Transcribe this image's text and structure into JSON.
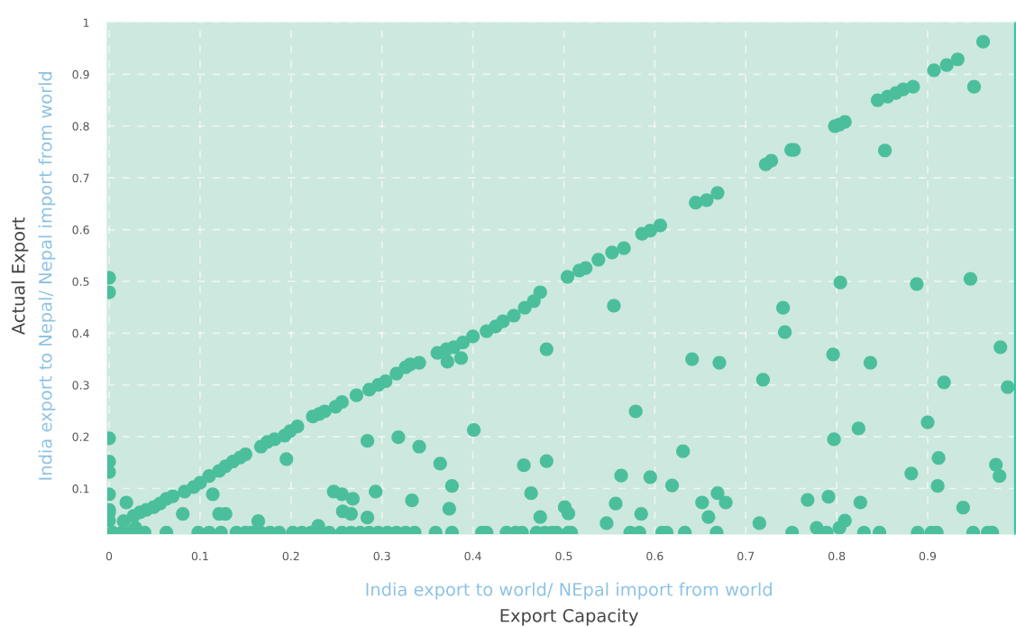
{
  "chart_data": {
    "type": "scatter",
    "xlabel": "Export Capacity",
    "ylabel": "Actual Export",
    "annotations": [
      "India export to world/ NEpal import from world",
      "India export to Nepal/ Nepal import from world"
    ],
    "x": [
      0,
      0,
      0,
      0,
      0,
      0,
      0,
      0,
      0,
      0.016,
      0.027,
      0.034,
      0.041,
      0.049,
      0.056,
      0.063,
      0.07,
      0.083,
      0.093,
      0.1,
      0.11,
      0.121,
      0.128,
      0.136,
      0.144,
      0.15,
      0.167,
      0.174,
      0.182,
      0.193,
      0.199,
      0.207,
      0.224,
      0.231,
      0.237,
      0.249,
      0.256,
      0.272,
      0.286,
      0.296,
      0.304,
      0.316,
      0.326,
      0.331,
      0.341,
      0.361,
      0.371,
      0.379,
      0.389,
      0.4,
      0.415,
      0.425,
      0.433,
      0.445,
      0.457,
      0.467,
      0.474,
      0.504,
      0.517,
      0.524,
      0.538,
      0.553,
      0.566,
      0.586,
      0.595,
      0.606,
      0.645,
      0.657,
      0.669,
      0.722,
      0.728,
      0.75,
      0.753,
      0.798,
      0.803,
      0.809,
      0.845,
      0.856,
      0.865,
      0.873,
      0.884,
      0.907,
      0.921,
      0.933,
      0.961,
      0.951,
      0.853,
      0.019,
      0.114,
      0.081,
      0.121,
      0.128,
      0.195,
      0.284,
      0.318,
      0.247,
      0.256,
      0.268,
      0.293,
      0.257,
      0.266,
      0.284,
      0.333,
      0.164,
      0.23,
      0.555,
      0.481,
      0.372,
      0.387,
      0.341,
      0.401,
      0.364,
      0.377,
      0.374,
      0.456,
      0.481,
      0.464,
      0.474,
      0.501,
      0.505,
      0.547,
      0.557,
      0.563,
      0.585,
      0.595,
      0.619,
      0.631,
      0.579,
      0.641,
      0.671,
      0.652,
      0.659,
      0.669,
      0.678,
      0.804,
      0.888,
      0.947,
      0.741,
      0.743,
      0.719,
      0.796,
      0.837,
      0.98,
      0.918,
      0.988,
      0.9,
      0.824,
      0.797,
      0.912,
      0.882,
      0.975,
      0.979,
      0.911,
      0.768,
      0.791,
      0.826,
      0.939,
      0.715,
      0.809,
      0.778,
      0.803,
      0.029,
      0.004,
      0.014,
      0.024,
      0.039,
      0.063,
      0.098,
      0.11,
      0.123,
      0.14,
      0.15,
      0.157,
      0.167,
      0.177,
      0.187,
      0.202,
      0.212,
      0.222,
      0.232,
      0.242,
      0.256,
      0.266,
      0.276,
      0.286,
      0.296,
      0.306,
      0.316,
      0.326,
      0.336,
      0.359,
      0.377,
      0.41,
      0.415,
      0.437,
      0.447,
      0.454,
      0.47,
      0.479,
      0.487,
      0.492,
      0.505,
      0.508,
      0.573,
      0.583,
      0.608,
      0.613,
      0.633,
      0.668,
      0.751,
      0.789,
      0.83,
      0.847,
      0.889,
      0.904,
      0.91,
      0.95,
      0.966,
      0.971
    ],
    "values": [
      0.507,
      0.479,
      0.197,
      0.152,
      0.132,
      0.089,
      0.059,
      0.054,
      0.038,
      0.037,
      0.047,
      0.054,
      0.059,
      0.064,
      0.071,
      0.08,
      0.085,
      0.094,
      0.103,
      0.111,
      0.124,
      0.134,
      0.143,
      0.152,
      0.16,
      0.166,
      0.181,
      0.19,
      0.195,
      0.202,
      0.211,
      0.22,
      0.239,
      0.244,
      0.249,
      0.258,
      0.267,
      0.28,
      0.291,
      0.3,
      0.307,
      0.322,
      0.334,
      0.34,
      0.343,
      0.362,
      0.369,
      0.373,
      0.382,
      0.394,
      0.404,
      0.413,
      0.423,
      0.434,
      0.449,
      0.462,
      0.479,
      0.509,
      0.521,
      0.526,
      0.542,
      0.556,
      0.564,
      0.592,
      0.598,
      0.608,
      0.652,
      0.657,
      0.671,
      0.726,
      0.733,
      0.754,
      0.754,
      0.8,
      0.803,
      0.808,
      0.85,
      0.857,
      0.864,
      0.871,
      0.876,
      0.908,
      0.918,
      0.929,
      0.963,
      0.876,
      0.753,
      0.073,
      0.089,
      0.051,
      0.051,
      0.051,
      0.157,
      0.192,
      0.199,
      0.094,
      0.089,
      0.08,
      0.094,
      0.056,
      0.051,
      0.044,
      0.077,
      0.037,
      0.028,
      0.453,
      0.369,
      0.345,
      0.352,
      0.181,
      0.213,
      0.148,
      0.105,
      0.061,
      0.145,
      0.153,
      0.091,
      0.045,
      0.064,
      0.052,
      0.033,
      0.071,
      0.125,
      0.051,
      0.122,
      0.106,
      0.172,
      0.249,
      0.35,
      0.343,
      0.073,
      0.045,
      0.091,
      0.073,
      0.498,
      0.495,
      0.505,
      0.449,
      0.402,
      0.31,
      0.359,
      0.343,
      0.373,
      0.305,
      0.296,
      0.228,
      0.216,
      0.195,
      0.159,
      0.129,
      0.146,
      0.124,
      0.105,
      0.078,
      0.084,
      0.073,
      0.063,
      0.033,
      0.038,
      0.024,
      0.024,
      0.024,
      0.015,
      0.015,
      0.015,
      0.015,
      0.015,
      0.015,
      0.015,
      0.015,
      0.015,
      0.015,
      0.015,
      0.015,
      0.015,
      0.015,
      0.015,
      0.015,
      0.015,
      0.015,
      0.015,
      0.015,
      0.015,
      0.015,
      0.015,
      0.015,
      0.015,
      0.015,
      0.015,
      0.015,
      0.015,
      0.015,
      0.015,
      0.015,
      0.015,
      0.015,
      0.015,
      0.015,
      0.015,
      0.015,
      0.015,
      0.015,
      0.015,
      0.015,
      0.015,
      0.015,
      0.015,
      0.015,
      0.015,
      0.015,
      0.015,
      0.015,
      0.015,
      0.015,
      0.015,
      0.015,
      0.015,
      0.015,
      0.015
    ],
    "color": "#4bbf9b",
    "marker": "circle",
    "xlim": [
      -0.002,
      0.996
    ],
    "ylim": [
      0.012,
      1.0
    ],
    "xticks": [
      0,
      0.1,
      0.2,
      0.3,
      0.4,
      0.5,
      0.6,
      0.7,
      0.8,
      0.9
    ],
    "yticks": [
      0.1,
      0.2,
      0.3,
      0.4,
      0.5,
      0.6,
      0.7,
      0.8,
      0.9,
      1
    ],
    "grid": true
  }
}
